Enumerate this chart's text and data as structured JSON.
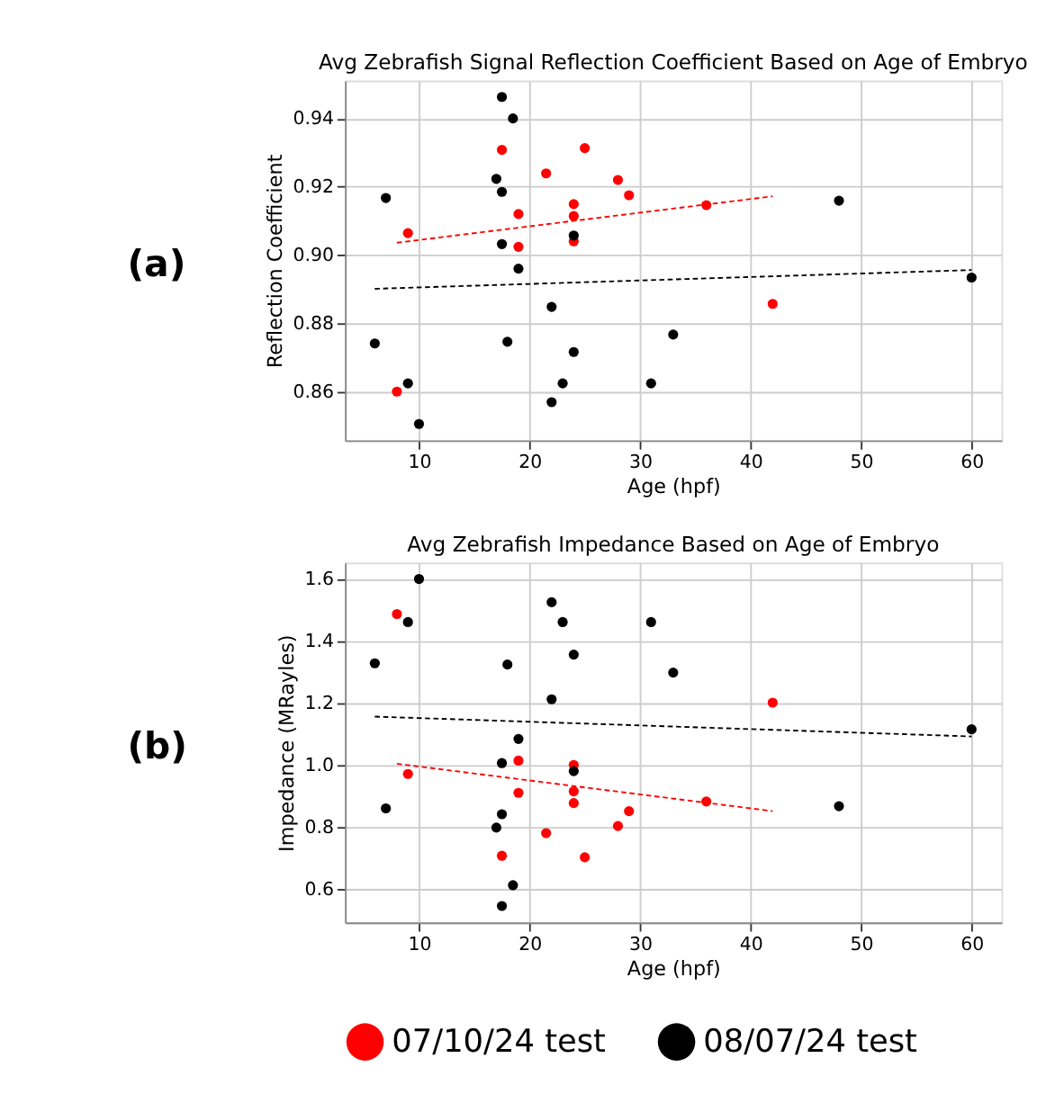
{
  "chart_data": [
    {
      "type": "scatter",
      "title": "Avg Zebrafish Signal Reflection Coefficient Based on Age of Embryo",
      "xlabel": "Age (hpf)",
      "ylabel": "Reflection Coefficient",
      "annotations": [
        "(a)"
      ],
      "xlim": [
        3.3,
        62.7
      ],
      "xticks": [
        10,
        20,
        30,
        40,
        50,
        60
      ],
      "ylim": [
        0.8457,
        0.9511
      ],
      "yticks": [
        0.86,
        0.88,
        {
          "value": 0.9,
          "label": "0.90"
        },
        0.92,
        0.94
      ],
      "grid": true,
      "legend": "bottom",
      "marker": "circle",
      "series": [
        {
          "name": "07/10/24 test",
          "color": "#ff0000",
          "x": [
            9,
            8,
            17.5,
            19,
            19,
            21.5,
            25,
            24,
            24,
            24,
            28,
            29,
            36,
            42
          ],
          "values": [
            0.9064,
            0.86,
            0.9308,
            0.912,
            0.9024,
            0.9239,
            0.9313,
            0.9149,
            0.9114,
            0.904,
            0.922,
            0.9175,
            0.9146,
            0.8857
          ]
        },
        {
          "name": "08/07/24 test",
          "color": "#000000",
          "x": [
            6,
            7,
            9,
            10,
            17.5,
            18.5,
            17,
            17.5,
            17.5,
            19,
            18,
            22,
            22,
            23,
            24,
            24,
            31,
            33,
            48,
            60
          ],
          "values": [
            0.8741,
            0.9167,
            0.8624,
            0.8505,
            0.9463,
            0.94,
            0.9223,
            0.9185,
            0.9032,
            0.896,
            0.8746,
            0.8848,
            0.8569,
            0.8624,
            0.9057,
            0.8716,
            0.8624,
            0.8767,
            0.9159,
            0.8934
          ]
        },
        {
          "type": "line",
          "line_style": "dashed",
          "marker": "none",
          "color": "#ff0000",
          "x": [
            8,
            42
          ],
          "values": [
            0.9036,
            0.9172
          ]
        },
        {
          "type": "line",
          "line_style": "dashed",
          "marker": "none",
          "color": "#000000",
          "x": [
            6,
            60
          ],
          "values": [
            0.8901,
            0.8956
          ]
        }
      ]
    },
    {
      "type": "scatter",
      "title": "Avg Zebrafish Impedance Based on Age of Embryo",
      "xlabel": "Age (hpf)",
      "ylabel": "Impedance (MRayles)",
      "annotations": [
        "(b)"
      ],
      "xlim": [
        3.3,
        62.7
      ],
      "xticks": [
        10,
        20,
        30,
        40,
        50,
        60
      ],
      "ylim": [
        0.492,
        1.653
      ],
      "yticks": [
        0.6,
        0.8,
        {
          "value": 1.0,
          "label": "1.0"
        },
        1.2,
        1.4,
        1.6
      ],
      "grid": true,
      "legend": "bottom",
      "marker": "circle",
      "series": [
        {
          "name": "07/10/24 test",
          "color": "#ff0000",
          "x": [
            8,
            9,
            17.5,
            19,
            19,
            21.5,
            25,
            24,
            24,
            24,
            28,
            29,
            36,
            42
          ],
          "values": [
            1.487,
            0.971,
            0.707,
            1.014,
            0.91,
            0.78,
            0.702,
            1.0,
            0.915,
            0.877,
            0.803,
            0.851,
            0.882,
            1.201
          ]
        },
        {
          "name": "08/07/24 test",
          "color": "#000000",
          "x": [
            6,
            7,
            9,
            10,
            17.5,
            17.5,
            17,
            17.5,
            18.5,
            18,
            19,
            22,
            22,
            23,
            24,
            24,
            31,
            33,
            48,
            60
          ],
          "values": [
            1.328,
            0.86,
            1.461,
            1.6,
            1.006,
            0.841,
            0.798,
            0.545,
            0.612,
            1.324,
            1.084,
            1.525,
            1.212,
            1.461,
            1.356,
            0.98,
            1.461,
            1.298,
            0.867,
            1.115
          ]
        },
        {
          "type": "line",
          "line_style": "dashed",
          "marker": "none",
          "color": "#ff0000",
          "x": [
            8,
            42
          ],
          "values": [
            1.004,
            0.851
          ]
        },
        {
          "type": "line",
          "line_style": "dashed",
          "marker": "none",
          "color": "#000000",
          "x": [
            6,
            60
          ],
          "values": [
            1.156,
            1.092
          ]
        }
      ]
    }
  ]
}
